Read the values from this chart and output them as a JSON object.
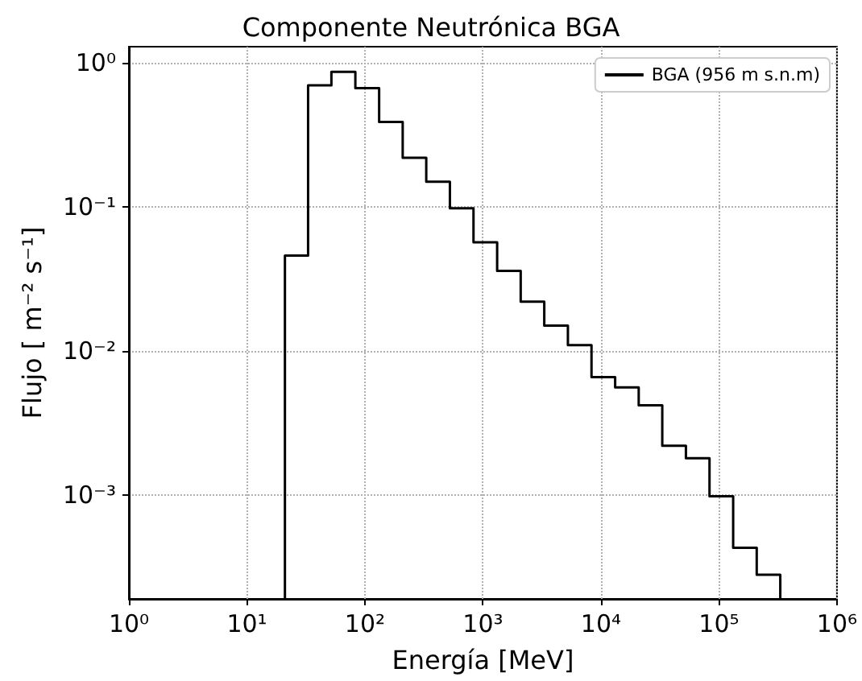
{
  "chart_data": {
    "type": "histogram",
    "title": "Componente Neutrónica BGA",
    "xlabel": "Energía [MeV]",
    "ylabel": "Flujo [ m⁻² s⁻¹]",
    "bins": [
      21,
      33,
      52,
      83,
      132,
      209,
      331,
      525,
      832,
      1320,
      2090,
      3310,
      5250,
      8320,
      13200,
      20900,
      33100,
      52500,
      83200,
      132000,
      209000,
      331000
    ],
    "series": [
      {
        "name": "BGA (956 m s.n.m)",
        "color": "#000000",
        "values": [
          0.046,
          0.7,
          0.87,
          0.67,
          0.39,
          0.22,
          0.15,
          0.098,
          0.057,
          0.036,
          0.022,
          0.015,
          0.011,
          0.0066,
          0.0056,
          0.0042,
          0.0022,
          0.0018,
          0.00098,
          0.00043,
          0.00028
        ]
      }
    ],
    "log": "xy",
    "xlim": [
      1,
      1000000
    ],
    "ylim": [
      0.00019,
      1.3
    ],
    "xticks": [
      {
        "value": 1,
        "label": "10⁰"
      },
      {
        "value": 10,
        "label": "10¹"
      },
      {
        "value": 100,
        "label": "10²"
      },
      {
        "value": 1000,
        "label": "10³"
      },
      {
        "value": 10000,
        "label": "10⁴"
      },
      {
        "value": 100000,
        "label": "10⁵"
      },
      {
        "value": 1000000,
        "label": "10⁶"
      }
    ],
    "yticks": [
      {
        "value": 0.001,
        "label": "10⁻³"
      },
      {
        "value": 0.01,
        "label": "10⁻²"
      },
      {
        "value": 0.1,
        "label": "10⁻¹"
      },
      {
        "value": 1,
        "label": "10⁰"
      }
    ],
    "grid": true,
    "legend": "top right",
    "line_style": "solid"
  }
}
